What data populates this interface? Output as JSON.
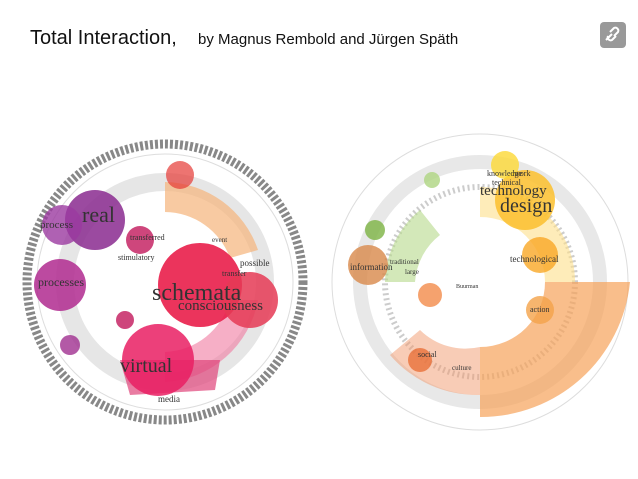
{
  "header": {
    "title": "Total Interaction,",
    "byline": "by Magnus Rembold and Jürgen Späth"
  },
  "left_graph": {
    "labels": [
      "real",
      "process",
      "processes",
      "transferred",
      "stimulatory",
      "schemata",
      "consciousness",
      "possible",
      "transfer",
      "virtual",
      "media",
      "event"
    ]
  },
  "right_graph": {
    "labels": [
      "technology",
      "design",
      "knowledge",
      "work",
      "technical",
      "technological",
      "information",
      "traditional",
      "large",
      "action",
      "social",
      "culture",
      "Buurman"
    ]
  }
}
